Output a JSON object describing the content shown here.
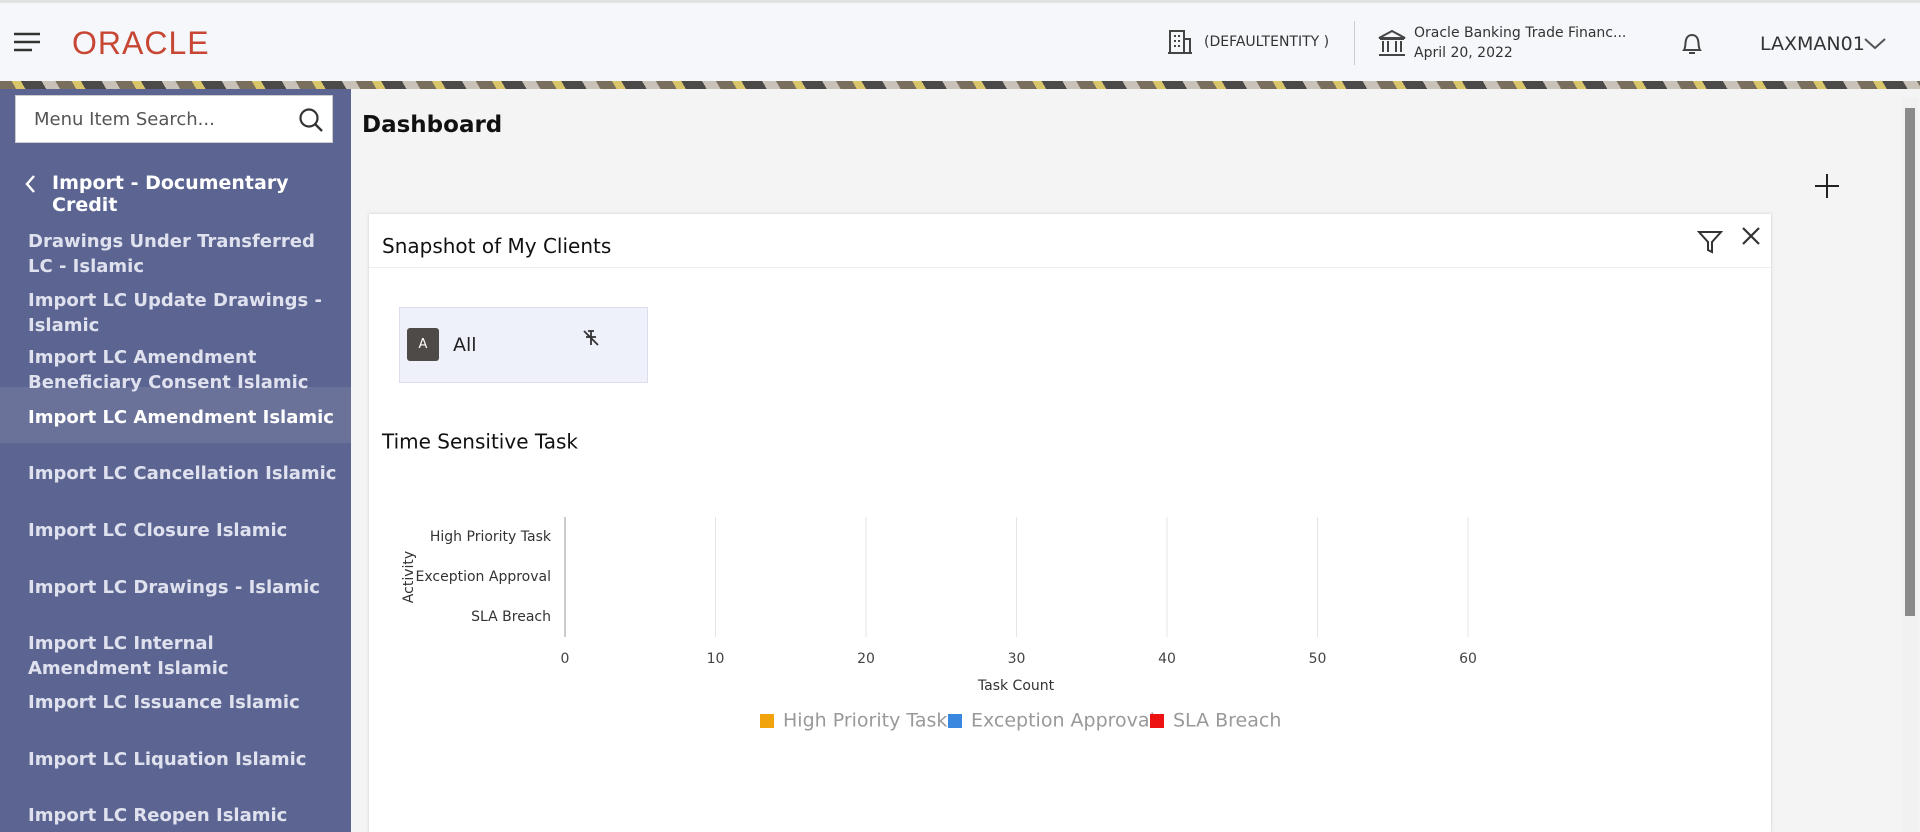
{
  "header": {
    "logo": "ORACLE",
    "entity": "(DEFAULTENTITY )",
    "branch": "Oracle Banking Trade Financ...",
    "date": "April 20, 2022",
    "user": "LAXMAN01"
  },
  "sidebar": {
    "search_placeholder": "Menu Item Search...",
    "section": "Import - Documentary Credit",
    "items": [
      "Drawings Under Transferred LC - Islamic",
      "Import LC Update Drawings - Islamic",
      "Import LC Amendment Beneficiary Consent Islamic",
      "Import LC Amendment Islamic",
      "Import LC Cancellation Islamic",
      "Import LC Closure Islamic",
      "Import LC Drawings - Islamic",
      "Import LC Internal Amendment Islamic",
      "Import LC Issuance Islamic",
      "Import LC Liquation Islamic",
      "Import LC Reopen Islamic"
    ]
  },
  "dashboard": {
    "title": "Dashboard",
    "widget_title": "Snapshot of My Clients",
    "clients": [
      {
        "initial": "A",
        "name": "All"
      }
    ]
  },
  "chart_data": {
    "type": "bar",
    "orientation": "horizontal",
    "stacked": true,
    "title": "Time Sensitive Task",
    "x_label": "Task Count",
    "y_label": "Activity",
    "categories": [
      "High Priority Task",
      "Exception Approval",
      "SLA Breach"
    ],
    "series": [
      {
        "name": "High Priority Task",
        "color": "#f0a30a",
        "values": [
          0,
          0,
          0
        ]
      },
      {
        "name": "Exception Approval",
        "color": "#3a87e0",
        "values": [
          0,
          0,
          0
        ]
      },
      {
        "name": "SLA Breach",
        "color": "#ee1111",
        "values": [
          0,
          0,
          0
        ]
      }
    ],
    "xlim": [
      0,
      60
    ],
    "xticks": [
      0,
      10,
      20,
      30,
      40,
      50,
      60
    ],
    "grid": true,
    "legend": "bottom"
  }
}
